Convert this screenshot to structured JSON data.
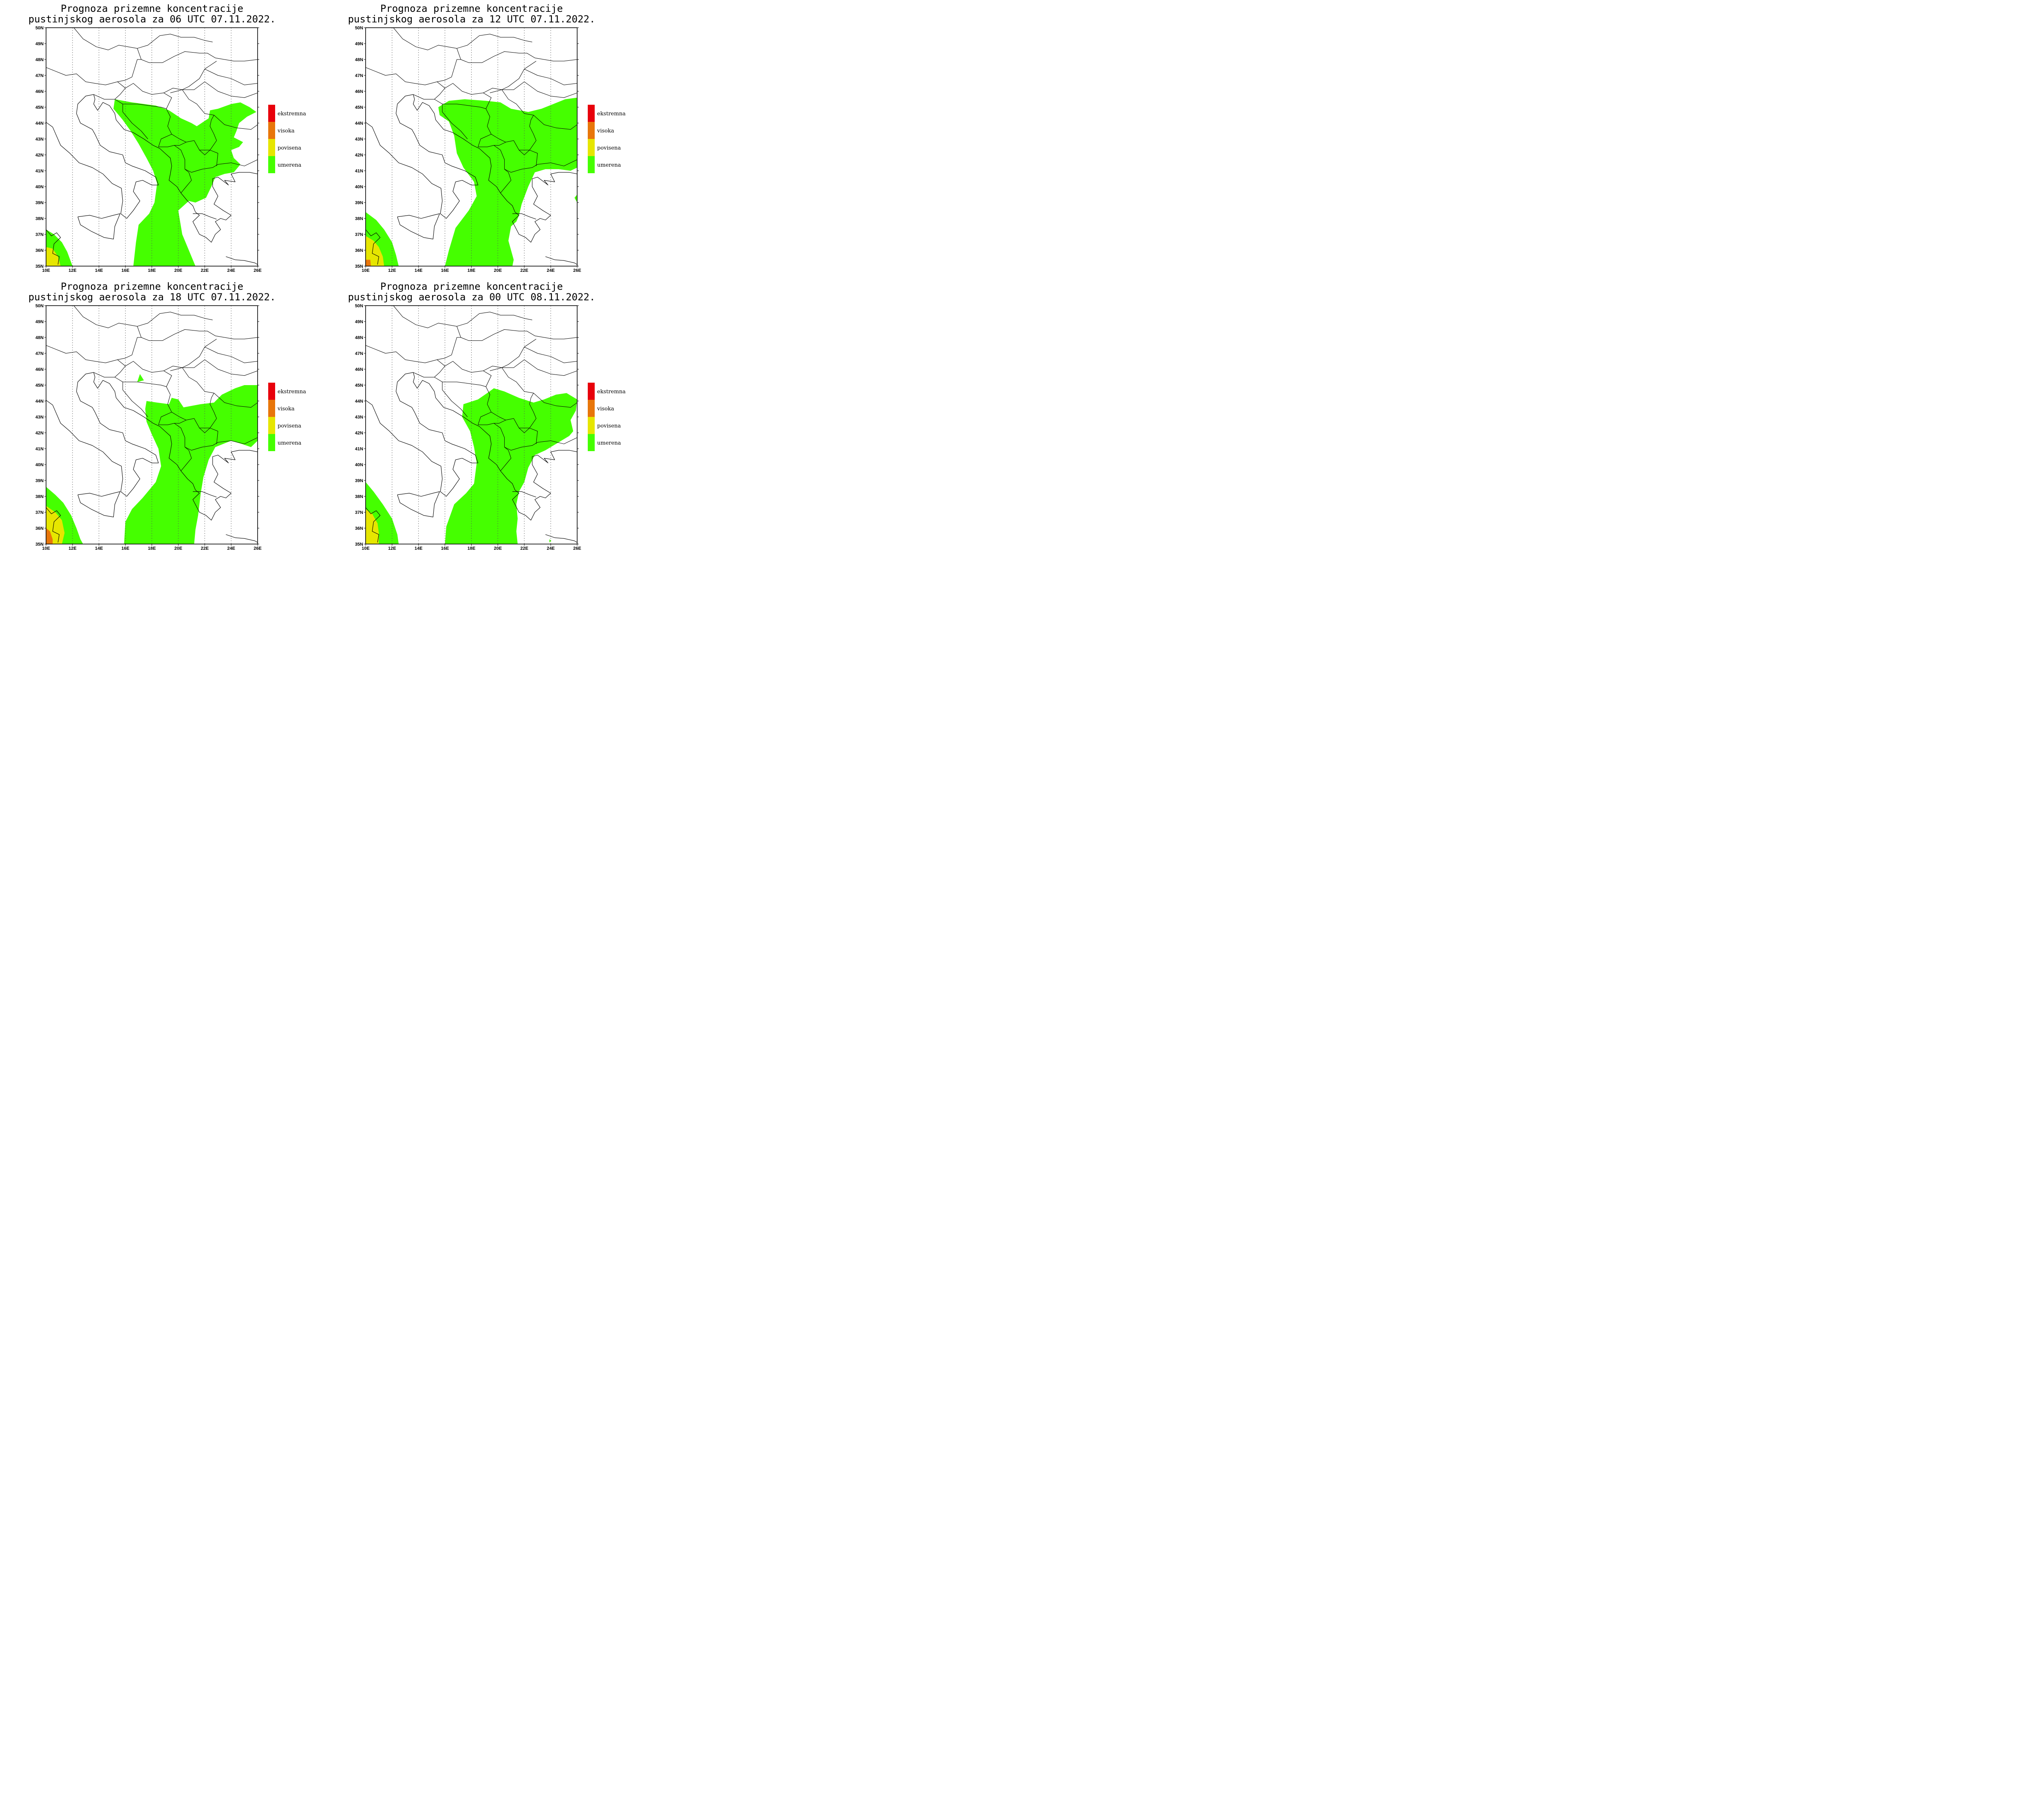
{
  "map_data": {
    "lon_range": [
      10,
      26
    ],
    "lat_range": [
      35,
      50
    ],
    "lon_ticks": [
      "10E",
      "12E",
      "14E",
      "16E",
      "18E",
      "20E",
      "22E",
      "24E",
      "26E"
    ],
    "lat_ticks": [
      "35N",
      "36N",
      "37N",
      "38N",
      "39N",
      "40N",
      "41N",
      "42N",
      "43N",
      "44N",
      "45N",
      "46N",
      "47N",
      "48N",
      "49N",
      "50N"
    ],
    "legend": [
      {
        "label": "ekstremna",
        "color": "#e8000b"
      },
      {
        "label": "visoka",
        "color": "#e8760a"
      },
      {
        "label": "povisena",
        "color": "#e6e600"
      },
      {
        "label": "umerena",
        "color": "#45ff00"
      }
    ],
    "panels": [
      {
        "title_line1": "Prognoza prizemne koncentracije",
        "title_line2": "pustinjskog aerosola za 06 UTC 07.11.2022."
      },
      {
        "title_line1": "Prognoza prizemne koncentracije",
        "title_line2": "pustinjskog aerosola za 12 UTC 07.11.2022."
      },
      {
        "title_line1": "Prognoza prizemne koncentracije",
        "title_line2": "pustinjskog aerosola za 18 UTC 07.11.2022."
      },
      {
        "title_line1": "Prognoza prizemne koncentracije",
        "title_line2": "pustinjskog aerosola za 00 UTC 08.11.2022."
      }
    ]
  }
}
